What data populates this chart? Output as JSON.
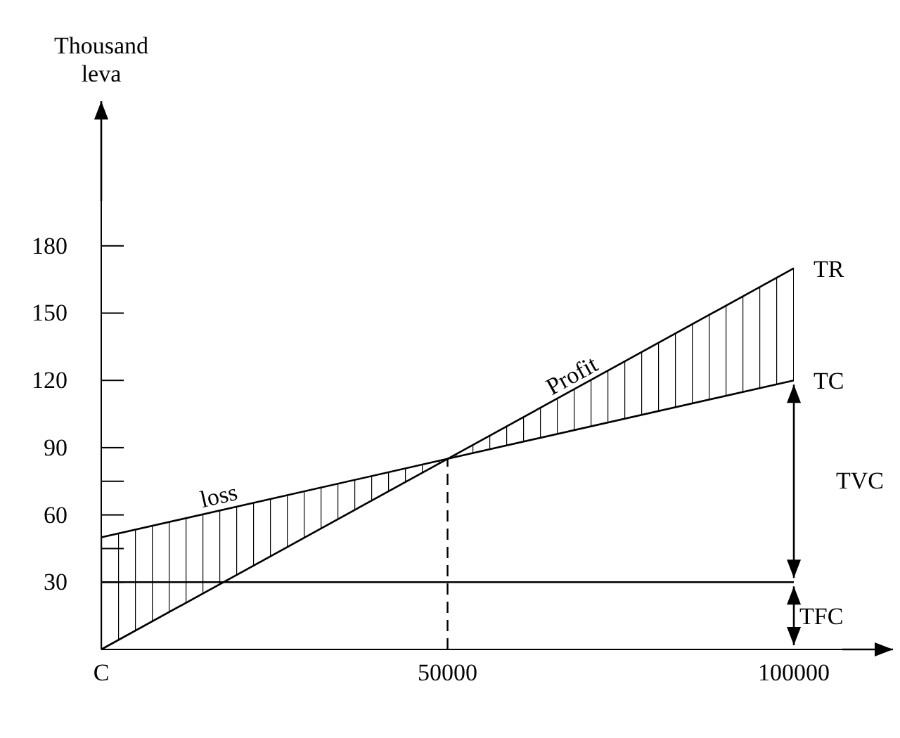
{
  "chart_data": {
    "type": "line",
    "ylabel": "Thousand leva",
    "x": [
      0,
      50000,
      100000
    ],
    "series": [
      {
        "name": "TR",
        "color": "#000000",
        "values": [
          0,
          85,
          170
        ]
      },
      {
        "name": "TC",
        "color": "#000000",
        "values": [
          50,
          85,
          120
        ],
        "lower": [
          0,
          85,
          120
        ],
        "upper": [
          50,
          85,
          170
        ]
      }
    ],
    "xlim": [
      0,
      107000
    ],
    "xticks": [
      {
        "value": 0,
        "label": "C"
      },
      50000,
      100000
    ],
    "ylim": [
      0,
      200
    ],
    "yticks": [
      30,
      {
        "value": 45,
        "label": null
      },
      60,
      {
        "value": 75,
        "label": null
      },
      90,
      120,
      150,
      180
    ],
    "ref_lines": [
      {
        "axis": "x",
        "value": 50000,
        "line_style": "dashed"
      },
      {
        "axis": "y",
        "value": 30
      }
    ],
    "annotations": [
      "loss",
      "Profit",
      "TVC",
      {
        "text": "TFC",
        "x": 100000,
        "y": 30
      }
    ],
    "grid": false,
    "marker": "none",
    "line_style": "solid"
  }
}
